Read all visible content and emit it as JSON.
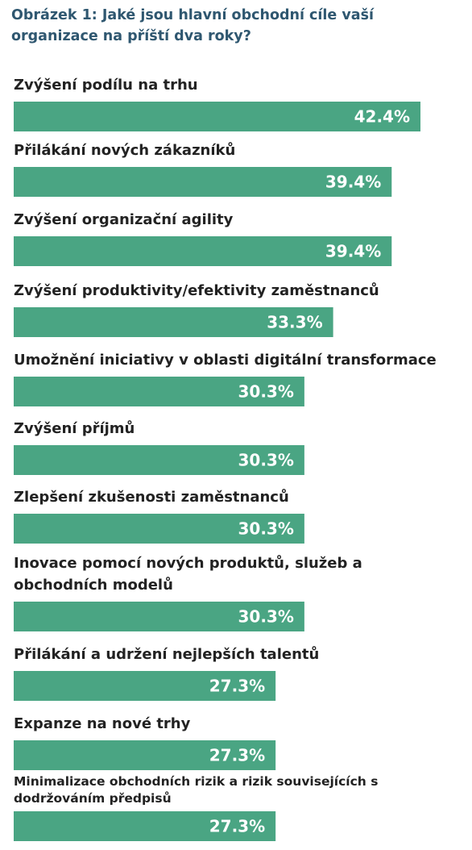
{
  "chart_data": {
    "type": "bar",
    "orientation": "horizontal",
    "title": "Obrázek 1: Jaké jsou hlavní obchodní cíle vaší organizace na příští dva roky?",
    "categories": [
      "Zvýšení podílu na trhu",
      "Přilákání nových zákazníků",
      "Zvýšení organizační agility",
      "Zvýšení produktivity/efektivity zaměstnanců",
      "Umožnění iniciativy v oblasti digitální transformace",
      "Zvýšení příjmů",
      "Zlepšení zkušenosti zaměstnanců",
      "Inovace pomocí nových produktů, služeb a obchodních modelů",
      "Přilákání a udržení nejlepších talentů",
      "Expanze na nové trhy",
      "Minimalizace obchodních rizik a rizik souvisejících s dodržováním předpisů"
    ],
    "category_lines": [
      [
        "Zvýšení podílu na trhu"
      ],
      [
        "Přilákání nových zákazníků"
      ],
      [
        "Zvýšení organizační agility"
      ],
      [
        "Zvýšení produktivity/efektivity zaměstnanců"
      ],
      [
        "Umožnění iniciativy v oblasti digitální transformace"
      ],
      [
        "Zvýšení příjmů"
      ],
      [
        "Zlepšení zkušenosti zaměstnanců"
      ],
      [
        "Inovace pomocí nových produktů, služeb a",
        "obchodních modelů"
      ],
      [
        "Přilákání a udržení nejlepších talentů"
      ],
      [
        "Expanze na nové trhy"
      ],
      [
        "Minimalizace obchodních rizik a rizik souvisejících s",
        "dodržováním předpisů"
      ]
    ],
    "values": [
      42.4,
      39.4,
      39.4,
      33.3,
      30.3,
      30.3,
      30.3,
      30.3,
      27.3,
      27.3,
      27.3
    ],
    "value_labels": [
      "42.4%",
      "39.4%",
      "39.4%",
      "33.3%",
      "30.3%",
      "30.3%",
      "30.3%",
      "30.3%",
      "27.3%",
      "27.3%",
      "27.3%"
    ],
    "unit": "%",
    "bar_color": "#4aa583",
    "label_color": "#222222",
    "value_label_color": "#ffffff",
    "title_color": "#2f5770",
    "grid": false,
    "legend": "none"
  }
}
